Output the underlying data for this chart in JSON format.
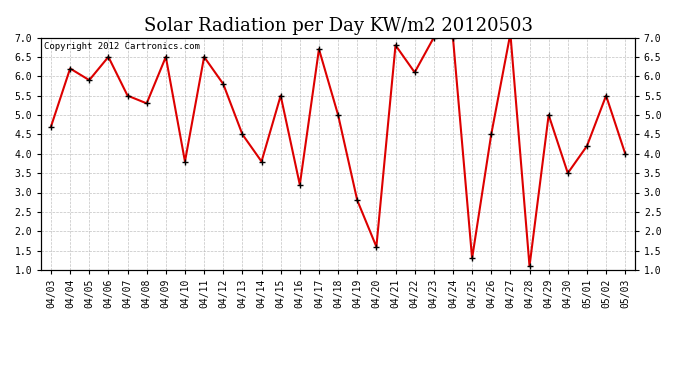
{
  "title": "Solar Radiation per Day KW/m2 20120503",
  "copyright_text": "Copyright 2012 Cartronics.com",
  "dates": [
    "04/03",
    "04/04",
    "04/05",
    "04/06",
    "04/07",
    "04/08",
    "04/09",
    "04/10",
    "04/11",
    "04/12",
    "04/13",
    "04/14",
    "04/15",
    "04/16",
    "04/17",
    "04/18",
    "04/19",
    "04/20",
    "04/21",
    "04/22",
    "04/23",
    "04/24",
    "04/25",
    "04/26",
    "04/27",
    "04/28",
    "04/29",
    "04/30",
    "05/01",
    "05/02",
    "05/03"
  ],
  "values": [
    4.7,
    6.2,
    5.9,
    6.5,
    5.5,
    5.3,
    6.5,
    3.8,
    6.5,
    5.8,
    4.5,
    3.8,
    5.5,
    3.2,
    6.7,
    5.0,
    2.8,
    1.6,
    6.8,
    6.1,
    7.0,
    7.0,
    1.3,
    4.5,
    7.1,
    1.1,
    5.0,
    3.5,
    4.2,
    5.5,
    4.0
  ],
  "line_color": "#dd0000",
  "background_color": "#ffffff",
  "grid_color": "#bbbbbb",
  "ylim_min": 1.0,
  "ylim_max": 7.0,
  "yticks": [
    1.0,
    1.5,
    2.0,
    2.5,
    3.0,
    3.5,
    4.0,
    4.5,
    5.0,
    5.5,
    6.0,
    6.5,
    7.0
  ],
  "title_fontsize": 13,
  "copyright_fontsize": 6.5,
  "tick_fontsize": 7
}
